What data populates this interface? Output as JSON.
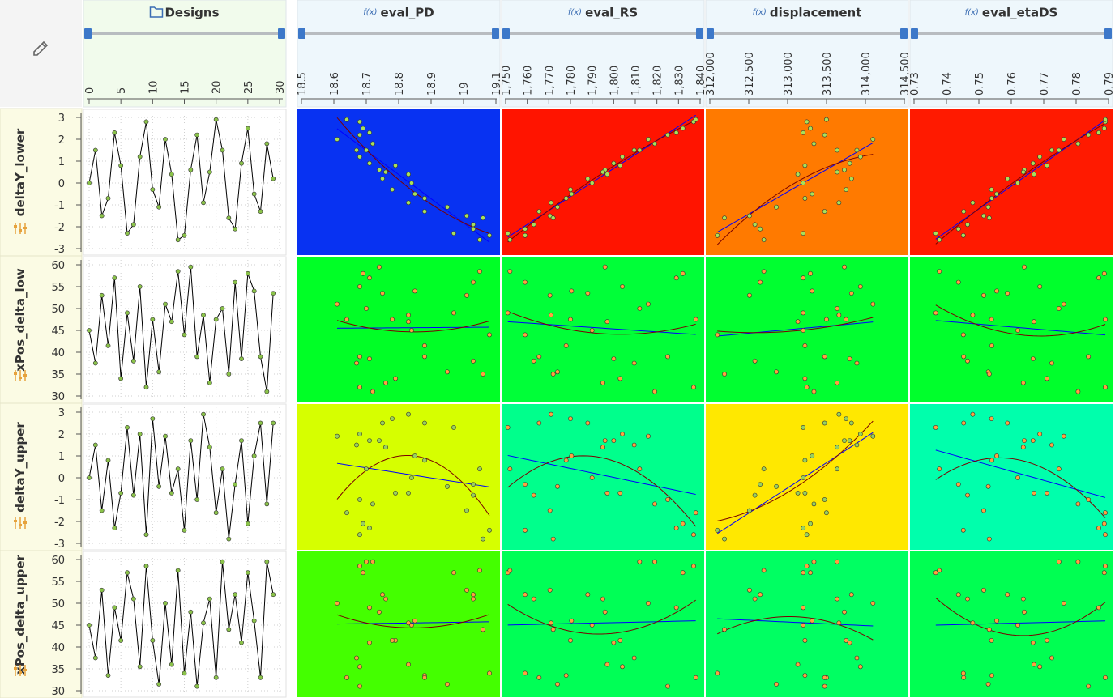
{
  "chart_data": {
    "type": "scatter-matrix",
    "function_marker": "f(x)",
    "linear_fit_color": "#0000ff",
    "quadratic_fit_color": "#7a0000",
    "designs": {
      "label": "Designs",
      "x": [
        0,
        1,
        2,
        3,
        4,
        5,
        6,
        7,
        8,
        9,
        10,
        11,
        12,
        13,
        14,
        15,
        16,
        17,
        18,
        19,
        20,
        21,
        22,
        23,
        24,
        25,
        26,
        27,
        28,
        29
      ],
      "xlim": [
        0,
        30
      ],
      "xticks": [
        0,
        5,
        10,
        15,
        20,
        25,
        30
      ],
      "line_color": "#000000",
      "dot_color": "#8bc34a"
    },
    "outputs": [
      {
        "name": "eval_PD",
        "xlim": [
          18.5,
          19.1
        ],
        "xticks": [
          18.5,
          18.6,
          18.7,
          18.8,
          18.9,
          19,
          19.1
        ],
        "values": [
          18.84,
          18.67,
          19.01,
          18.88,
          18.71,
          18.79,
          18.97,
          19.03,
          18.68,
          18.68,
          18.78,
          18.95,
          18.61,
          18.83,
          19.05,
          19.08,
          18.74,
          18.68,
          18.83,
          18.76,
          18.64,
          18.7,
          19.06,
          19.03,
          18.71,
          18.69,
          18.85,
          18.88,
          18.72,
          18.75
        ]
      },
      {
        "name": "eval_RS",
        "xlim": [
          1750,
          1840
        ],
        "xticks": [
          {
            "value": 1750,
            "label": "1,750"
          },
          {
            "value": 1760,
            "label": "1,760"
          },
          {
            "value": 1770,
            "label": "1,770"
          },
          {
            "value": 1780,
            "label": "1,780"
          },
          {
            "value": 1790,
            "label": "1,790"
          },
          {
            "value": 1800,
            "label": "1,800"
          },
          {
            "value": 1810,
            "label": "1,810"
          },
          {
            "value": 1820,
            "label": "1,820"
          },
          {
            "value": 1830,
            "label": "1,830"
          },
          {
            "value": 1840,
            "label": "1,840"
          }
        ],
        "values": [
          1790,
          1809.5,
          1770.5,
          1778,
          1829,
          1803,
          1751,
          1763,
          1804,
          1837,
          1780,
          1774,
          1816,
          1797,
          1752,
          1759,
          1796,
          1825,
          1771,
          1795,
          1838,
          1812,
          1772,
          1759,
          1800,
          1832,
          1780.5,
          1765.5,
          1819,
          1788
        ]
      },
      {
        "name": "displacement",
        "xlim": [
          312000,
          314500
        ],
        "xticks": [
          {
            "value": 312000,
            "label": "312,000"
          },
          {
            "value": 312500,
            "label": "312,500"
          },
          {
            "value": 313000,
            "label": "313,000"
          },
          {
            "value": 313500,
            "label": "313,500"
          },
          {
            "value": 314000,
            "label": "314,000"
          },
          {
            "value": 314500,
            "label": "314,500"
          }
        ],
        "values": [
          313200,
          313890,
          312510,
          313223,
          313200,
          313223,
          313200,
          312579,
          313936,
          313246,
          313752,
          312855,
          314097,
          313131,
          312694,
          312096,
          313729,
          313476,
          313660,
          313637,
          313499,
          313637,
          312188,
          312648,
          313798,
          313292,
          313315,
          313476,
          313338,
          313821
        ]
      },
      {
        "name": "eval_etaDS",
        "xlim": [
          0.73,
          0.79
        ],
        "xticks": [
          0.73,
          0.74,
          0.75,
          0.76,
          0.77,
          0.78,
          0.79
        ],
        "values": [
          0.762,
          0.7725,
          0.7515,
          0.754,
          0.787,
          0.771,
          0.7367,
          0.7465,
          0.7688,
          0.789,
          0.7539,
          0.7529,
          0.7762,
          0.767,
          0.7378,
          0.7452,
          0.764,
          0.7838,
          0.7481,
          0.7637,
          0.789,
          0.7747,
          0.7532,
          0.7437,
          0.7667,
          0.7887,
          0.7555,
          0.7453,
          0.7806,
          0.7588
        ]
      }
    ],
    "inputs": [
      {
        "name": "deltaY_lower",
        "ylim": [
          -3,
          3
        ],
        "yticks": [
          -3,
          -2,
          -1,
          0,
          1,
          2,
          3
        ],
        "values": [
          0,
          1.5,
          -1.5,
          -0.7,
          2.3,
          0.8,
          -2.3,
          -1.9,
          1.2,
          2.8,
          -0.3,
          -1.1,
          2.0,
          0.4,
          -2.6,
          -2.4,
          0.6,
          2.2,
          -0.9,
          0.5,
          2.9,
          1.5,
          -1.6,
          -2.1,
          0.9,
          2.5,
          -0.5,
          -1.3,
          1.8,
          0.2
        ]
      },
      {
        "name": "xPos_delta_low",
        "ylim": [
          30,
          60
        ],
        "yticks": [
          30,
          35,
          40,
          45,
          50,
          55,
          60
        ],
        "values": [
          45,
          37.5,
          53,
          41.5,
          57,
          34,
          49,
          38,
          55,
          32,
          47.5,
          35.5,
          51,
          47,
          58.5,
          44,
          59.5,
          39,
          48.5,
          33,
          47.5,
          50,
          35,
          56,
          38.5,
          58,
          54,
          39,
          31,
          53.5
        ]
      },
      {
        "name": "deltaY_upper",
        "ylim": [
          -3,
          3
        ],
        "yticks": [
          -3,
          -2,
          -1,
          0,
          1,
          2,
          3
        ],
        "values": [
          0,
          1.5,
          -1.5,
          0.8,
          -2.3,
          -0.7,
          2.3,
          -0.8,
          2.0,
          -2.6,
          2.7,
          -0.4,
          1.9,
          -0.7,
          0.4,
          -2.4,
          1.7,
          -1.0,
          2.9,
          1.4,
          -1.6,
          0.4,
          -2.8,
          -0.3,
          1.7,
          -2.1,
          1.0,
          2.5,
          -1.2,
          2.5
        ]
      },
      {
        "name": "xPos_delta_upper",
        "ylim": [
          30,
          60
        ],
        "yticks": [
          30,
          35,
          40,
          45,
          50,
          55,
          60
        ],
        "values": [
          45,
          37.5,
          53,
          33.5,
          49,
          41.5,
          57,
          51,
          35.5,
          58.5,
          41.5,
          31.5,
          50,
          36,
          57.5,
          34,
          48,
          31,
          45.5,
          51,
          33,
          59.5,
          44,
          52,
          41,
          57,
          46,
          33,
          59.5,
          52
        ]
      }
    ],
    "cells": [
      [
        {
          "color": "#0832f2",
          "dot": "#a8e05a"
        },
        {
          "color": "#ff1400",
          "dot": "#a8e05a"
        },
        {
          "color": "#ff7a00",
          "dot": "#a8e05a"
        },
        {
          "color": "#ff1a00",
          "dot": "#a8e05a"
        }
      ],
      [
        {
          "color": "#00ff26",
          "dot": "#ffa040"
        },
        {
          "color": "#00ff38",
          "dot": "#ffa040"
        },
        {
          "color": "#00ff30",
          "dot": "#ffa040"
        },
        {
          "color": "#00ff2c",
          "dot": "#ffa040"
        }
      ],
      [
        {
          "color": "#d6ff00",
          "dot": "#98d060"
        },
        {
          "color": "#00ff8c",
          "dot": "#ffa040"
        },
        {
          "color": "#ffe800",
          "dot": "#98d060"
        },
        {
          "color": "#00ffac",
          "dot": "#ffa040"
        }
      ],
      [
        {
          "color": "#44ff00",
          "dot": "#ffa040"
        },
        {
          "color": "#00ff56",
          "dot": "#ffa040"
        },
        {
          "color": "#00ff62",
          "dot": "#ffa040"
        },
        {
          "color": "#00ff52",
          "dot": "#ffa040"
        }
      ]
    ]
  }
}
